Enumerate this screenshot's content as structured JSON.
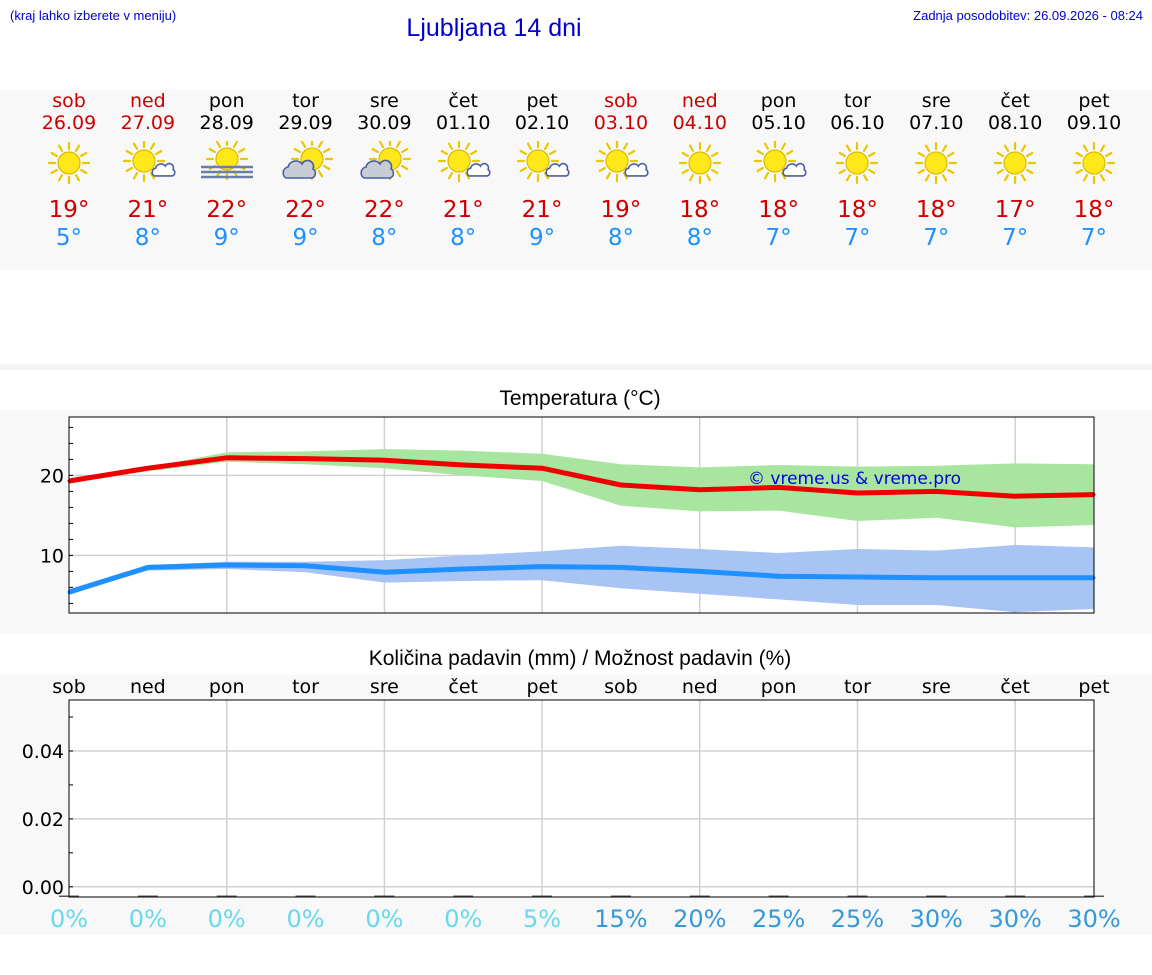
{
  "header": {
    "menu_hint": "(kraj lahko izberete v meniju)",
    "title": "Ljubljana 14 dni",
    "last_update": "Zadnja posodobitev: 26.09.2026 - 08:24"
  },
  "days": [
    {
      "name": "sob",
      "date": "26.09",
      "weekend": true,
      "icon": "sun-icon",
      "tmax": "19°",
      "tmin": "5°"
    },
    {
      "name": "ned",
      "date": "27.09",
      "weekend": true,
      "icon": "sun-small-cloud-icon",
      "tmax": "21°",
      "tmin": "8°"
    },
    {
      "name": "pon",
      "date": "28.09",
      "weekend": false,
      "icon": "sun-fog-icon",
      "tmax": "22°",
      "tmin": "9°"
    },
    {
      "name": "tor",
      "date": "29.09",
      "weekend": false,
      "icon": "sun-cloud-icon",
      "tmax": "22°",
      "tmin": "9°"
    },
    {
      "name": "sre",
      "date": "30.09",
      "weekend": false,
      "icon": "sun-cloud-icon",
      "tmax": "22°",
      "tmin": "8°"
    },
    {
      "name": "čet",
      "date": "01.10",
      "weekend": false,
      "icon": "sun-small-cloud-icon",
      "tmax": "21°",
      "tmin": "8°"
    },
    {
      "name": "pet",
      "date": "02.10",
      "weekend": false,
      "icon": "sun-small-cloud-icon",
      "tmax": "21°",
      "tmin": "9°"
    },
    {
      "name": "sob",
      "date": "03.10",
      "weekend": true,
      "icon": "sun-small-cloud-icon",
      "tmax": "19°",
      "tmin": "8°"
    },
    {
      "name": "ned",
      "date": "04.10",
      "weekend": true,
      "icon": "sun-icon",
      "tmax": "18°",
      "tmin": "8°"
    },
    {
      "name": "pon",
      "date": "05.10",
      "weekend": false,
      "icon": "sun-small-cloud-icon",
      "tmax": "18°",
      "tmin": "7°"
    },
    {
      "name": "tor",
      "date": "06.10",
      "weekend": false,
      "icon": "sun-icon",
      "tmax": "18°",
      "tmin": "7°"
    },
    {
      "name": "sre",
      "date": "07.10",
      "weekend": false,
      "icon": "sun-icon",
      "tmax": "18°",
      "tmin": "7°"
    },
    {
      "name": "čet",
      "date": "08.10",
      "weekend": false,
      "icon": "sun-icon",
      "tmax": "17°",
      "tmin": "7°"
    },
    {
      "name": "pet",
      "date": "09.10",
      "weekend": false,
      "icon": "sun-icon",
      "tmax": "18°",
      "tmin": "7°"
    }
  ],
  "colors": {
    "weekend": "#cc0000",
    "tmax": "#cc0000",
    "tmin": "#1e90ff",
    "max_line": "#ee0000",
    "max_band": "#a8e6a0",
    "min_line": "#1e90ff",
    "min_band": "#a8c4f4",
    "precip_low": "#66d9ee",
    "precip_high": "#3399dd",
    "watermark": "#0000dd"
  },
  "chart_data": [
    {
      "type": "line",
      "title": "Temperatura (°C)",
      "watermark": "© vreme.us & vreme.pro",
      "x": [
        "26.09",
        "27.09",
        "28.09",
        "29.09",
        "30.09",
        "01.10",
        "02.10",
        "03.10",
        "04.10",
        "05.10",
        "06.10",
        "07.10",
        "08.10",
        "09.10"
      ],
      "ylim": [
        2.8,
        27.3
      ],
      "yticks": [
        10,
        20
      ],
      "grid": true,
      "series": [
        {
          "role": "max",
          "values": [
            19.3,
            20.9,
            22.2,
            22.1,
            21.9,
            21.3,
            20.9,
            18.8,
            18.2,
            18.5,
            17.8,
            18.0,
            17.4,
            17.6
          ],
          "band_low": [
            19.3,
            20.5,
            21.7,
            21.4,
            20.9,
            20.0,
            19.3,
            16.2,
            15.5,
            15.6,
            14.3,
            14.7,
            13.5,
            13.8
          ],
          "band_high": [
            19.3,
            21.0,
            22.9,
            23.0,
            23.3,
            23.1,
            22.7,
            21.4,
            21.0,
            21.3,
            21.1,
            21.2,
            21.5,
            21.4
          ]
        },
        {
          "role": "min",
          "values": [
            5.4,
            8.5,
            8.8,
            8.7,
            7.9,
            8.3,
            8.6,
            8.5,
            8.0,
            7.4,
            7.3,
            7.2,
            7.2,
            7.2
          ],
          "band_low": [
            5.2,
            8.1,
            8.3,
            7.9,
            6.6,
            6.8,
            6.9,
            5.9,
            5.2,
            4.5,
            3.8,
            3.8,
            2.9,
            3.3
          ],
          "band_high": [
            5.8,
            8.8,
            9.2,
            9.2,
            9.4,
            10.0,
            10.5,
            11.2,
            10.8,
            10.3,
            10.8,
            10.6,
            11.3,
            11.0
          ]
        }
      ]
    },
    {
      "type": "bar",
      "title": "Količina padavin (mm) / Možnost padavin (%)",
      "categories": [
        "sob",
        "ned",
        "pon",
        "tor",
        "sre",
        "čet",
        "pet",
        "sob",
        "ned",
        "pon",
        "tor",
        "sre",
        "čet",
        "pet"
      ],
      "values": [
        0,
        0,
        0,
        0,
        0,
        0,
        0,
        0,
        0,
        0,
        0,
        0,
        0,
        0
      ],
      "probability": [
        "0%",
        "0%",
        "0%",
        "0%",
        "0%",
        "0%",
        "5%",
        "15%",
        "20%",
        "25%",
        "25%",
        "30%",
        "30%",
        "30%"
      ],
      "ylim": [
        -0.003,
        0.055
      ],
      "yticks": [
        "0.00",
        "0.02",
        "0.04"
      ],
      "grid": true
    }
  ]
}
